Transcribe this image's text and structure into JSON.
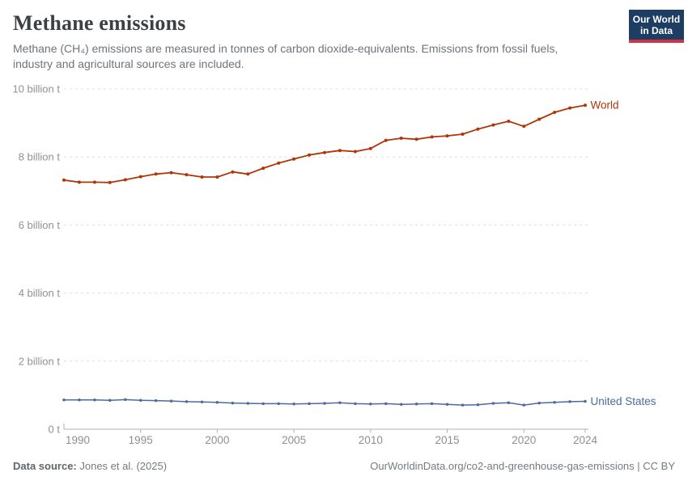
{
  "header": {
    "title": "Methane emissions",
    "subtitle": "Methane (CH₄) emissions are measured in tonnes of carbon dioxide-equivalents. Emissions from fossil fuels, industry and agricultural sources are included.",
    "logo": {
      "line1": "Our World",
      "line2": "in Data",
      "bg_color": "#1d3d63",
      "stripe_color": "#cb3544"
    }
  },
  "chart_data": {
    "type": "line",
    "title": "Methane emissions",
    "unit": "tonnes of CO₂-equivalents",
    "xlabel": "",
    "ylabel": "",
    "grid": "horizontal-dashed",
    "legend_position": "end-of-line",
    "xlim": [
      1990,
      2024
    ],
    "ylim": [
      0,
      10
    ],
    "x": [
      1990,
      1991,
      1992,
      1993,
      1994,
      1995,
      1996,
      1997,
      1998,
      1999,
      2000,
      2001,
      2002,
      2003,
      2004,
      2005,
      2006,
      2007,
      2008,
      2009,
      2010,
      2011,
      2012,
      2013,
      2014,
      2015,
      2016,
      2017,
      2018,
      2019,
      2020,
      2021,
      2022,
      2023,
      2024
    ],
    "xticks": [
      1990,
      1995,
      2000,
      2005,
      2010,
      2015,
      2020,
      2024
    ],
    "yticks": [
      {
        "value": 0,
        "label": "0 t"
      },
      {
        "value": 2,
        "label": "2 billion t"
      },
      {
        "value": 4,
        "label": "4 billion t"
      },
      {
        "value": 6,
        "label": "6 billion t"
      },
      {
        "value": 8,
        "label": "8 billion t"
      },
      {
        "value": 10,
        "label": "10 billion t"
      }
    ],
    "series": [
      {
        "name": "World",
        "color": "#b13507",
        "values": [
          7.32,
          7.26,
          7.26,
          7.25,
          7.33,
          7.42,
          7.5,
          7.54,
          7.48,
          7.41,
          7.41,
          7.56,
          7.5,
          7.67,
          7.82,
          7.94,
          8.06,
          8.13,
          8.19,
          8.16,
          8.25,
          8.49,
          8.55,
          8.52,
          8.59,
          8.62,
          8.67,
          8.82,
          8.94,
          9.05,
          8.9,
          9.11,
          9.31,
          9.44,
          9.52
        ]
      },
      {
        "name": "United States",
        "color": "#4c6a9c",
        "values": [
          0.86,
          0.86,
          0.86,
          0.85,
          0.87,
          0.85,
          0.84,
          0.83,
          0.81,
          0.8,
          0.79,
          0.77,
          0.76,
          0.75,
          0.75,
          0.74,
          0.75,
          0.76,
          0.78,
          0.75,
          0.74,
          0.75,
          0.73,
          0.74,
          0.75,
          0.73,
          0.71,
          0.72,
          0.76,
          0.78,
          0.71,
          0.77,
          0.79,
          0.81,
          0.82
        ]
      }
    ]
  },
  "footer": {
    "source_label": "Data source:",
    "source_value": " Jones et al. (2025)",
    "url_note": "OurWorldinData.org/co2-and-greenhouse-gas-emissions | CC BY"
  }
}
